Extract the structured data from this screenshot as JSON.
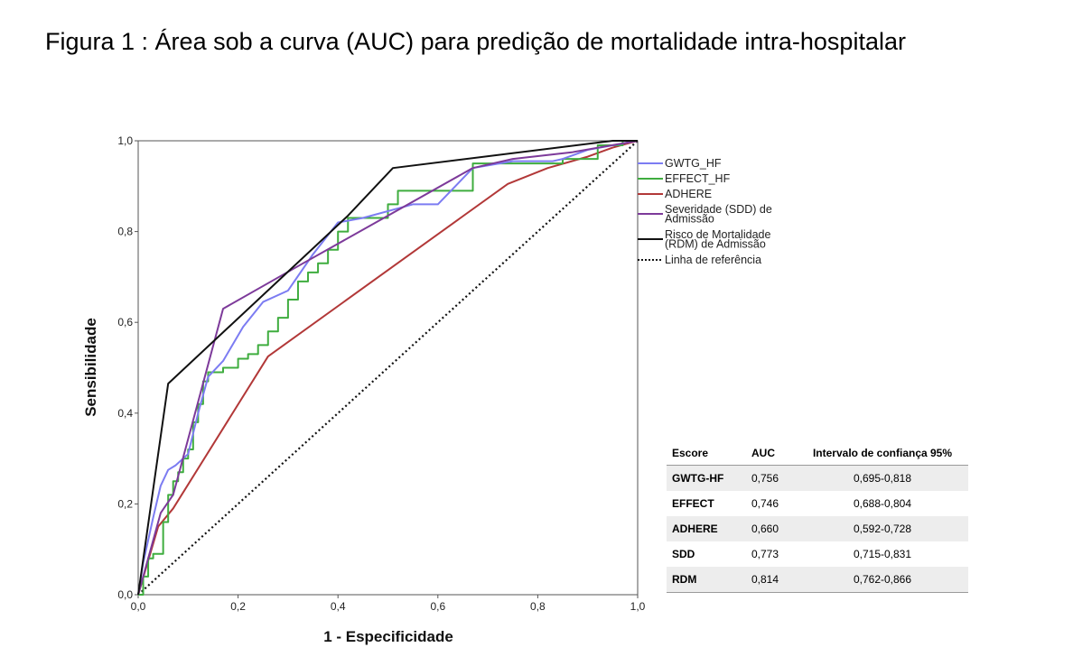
{
  "page_title": "Figura 1 : Área sob a curva (AUC) para predição de mortalidade intra-hospitalar",
  "chart_data": {
    "type": "line",
    "title": "",
    "xlabel": "1 - Especificidade",
    "ylabel": "Sensibilidade",
    "xlim": [
      0,
      1
    ],
    "ylim": [
      0,
      1
    ],
    "x_ticks": [
      "0,0",
      "0,2",
      "0,4",
      "0,6",
      "0,8",
      "1,0"
    ],
    "y_ticks": [
      "0,0",
      "0,2",
      "0,4",
      "0,6",
      "0,8",
      "1,0"
    ],
    "grid": false,
    "legend_position": "right",
    "series": [
      {
        "name": "GWTG_HF",
        "color": "#7c7cf2",
        "style": "solid",
        "points": [
          [
            0,
            0
          ],
          [
            0.01,
            0.07
          ],
          [
            0.03,
            0.17
          ],
          [
            0.045,
            0.24
          ],
          [
            0.06,
            0.275
          ],
          [
            0.075,
            0.285
          ],
          [
            0.1,
            0.31
          ],
          [
            0.12,
            0.4
          ],
          [
            0.14,
            0.48
          ],
          [
            0.17,
            0.515
          ],
          [
            0.21,
            0.59
          ],
          [
            0.25,
            0.645
          ],
          [
            0.3,
            0.67
          ],
          [
            0.35,
            0.75
          ],
          [
            0.4,
            0.82
          ],
          [
            0.45,
            0.83
          ],
          [
            0.55,
            0.86
          ],
          [
            0.6,
            0.86
          ],
          [
            0.67,
            0.94
          ],
          [
            0.75,
            0.955
          ],
          [
            0.83,
            0.955
          ],
          [
            0.85,
            0.96
          ],
          [
            0.9,
            0.98
          ],
          [
            1,
            1
          ]
        ]
      },
      {
        "name": "EFFECT_HF",
        "color": "#3fad3f",
        "style": "step",
        "points": [
          [
            0,
            0
          ],
          [
            0.01,
            0.04
          ],
          [
            0.02,
            0.08
          ],
          [
            0.03,
            0.09
          ],
          [
            0.05,
            0.16
          ],
          [
            0.06,
            0.22
          ],
          [
            0.07,
            0.25
          ],
          [
            0.08,
            0.27
          ],
          [
            0.09,
            0.3
          ],
          [
            0.1,
            0.32
          ],
          [
            0.11,
            0.38
          ],
          [
            0.12,
            0.42
          ],
          [
            0.13,
            0.47
          ],
          [
            0.14,
            0.49
          ],
          [
            0.17,
            0.5
          ],
          [
            0.2,
            0.52
          ],
          [
            0.22,
            0.53
          ],
          [
            0.24,
            0.55
          ],
          [
            0.26,
            0.58
          ],
          [
            0.28,
            0.61
          ],
          [
            0.3,
            0.65
          ],
          [
            0.32,
            0.69
          ],
          [
            0.34,
            0.71
          ],
          [
            0.36,
            0.73
          ],
          [
            0.38,
            0.76
          ],
          [
            0.4,
            0.8
          ],
          [
            0.42,
            0.83
          ],
          [
            0.5,
            0.86
          ],
          [
            0.52,
            0.89
          ],
          [
            0.6,
            0.89
          ],
          [
            0.67,
            0.95
          ],
          [
            0.72,
            0.95
          ],
          [
            0.85,
            0.96
          ],
          [
            0.92,
            0.99
          ],
          [
            0.97,
            1
          ],
          [
            1,
            1
          ]
        ]
      },
      {
        "name": "ADHERE",
        "color": "#b23838",
        "style": "solid",
        "points": [
          [
            0,
            0
          ],
          [
            0.04,
            0.15
          ],
          [
            0.07,
            0.19
          ],
          [
            0.26,
            0.525
          ],
          [
            0.74,
            0.905
          ],
          [
            0.82,
            0.94
          ],
          [
            0.9,
            0.965
          ],
          [
            0.95,
            0.985
          ],
          [
            1,
            1
          ]
        ]
      },
      {
        "name": "Severidade (SDD) de Admissão",
        "color": "#7d3a9a",
        "style": "solid",
        "points": [
          [
            0,
            0
          ],
          [
            0.045,
            0.18
          ],
          [
            0.07,
            0.22
          ],
          [
            0.17,
            0.63
          ],
          [
            0.33,
            0.73
          ],
          [
            0.67,
            0.94
          ],
          [
            0.75,
            0.96
          ],
          [
            0.87,
            0.975
          ],
          [
            1,
            1
          ]
        ]
      },
      {
        "name": "Risco de Mortalidade (RDM) de Admissão",
        "color": "#111111",
        "style": "solid",
        "points": [
          [
            0,
            0
          ],
          [
            0.06,
            0.465
          ],
          [
            0.42,
            0.835
          ],
          [
            0.51,
            0.94
          ],
          [
            0.95,
            1
          ],
          [
            1,
            1
          ]
        ]
      },
      {
        "name": "Linha de referência",
        "color": "#111111",
        "style": "dotted",
        "points": [
          [
            0,
            0
          ],
          [
            1,
            1
          ]
        ]
      }
    ]
  },
  "auc_table": {
    "headers": [
      "Escore",
      "AUC",
      "Intervalo de confiança 95%"
    ],
    "rows": [
      {
        "score": "GWTG-HF",
        "auc": "0,756",
        "ci": "0,695-0,818"
      },
      {
        "score": "EFFECT",
        "auc": "0,746",
        "ci": "0,688-0,804"
      },
      {
        "score": "ADHERE",
        "auc": "0,660",
        "ci": "0,592-0,728"
      },
      {
        "score": "SDD",
        "auc": "0,773",
        "ci": "0,715-0,831"
      },
      {
        "score": "RDM",
        "auc": "0,814",
        "ci": "0,762-0,866"
      }
    ]
  }
}
